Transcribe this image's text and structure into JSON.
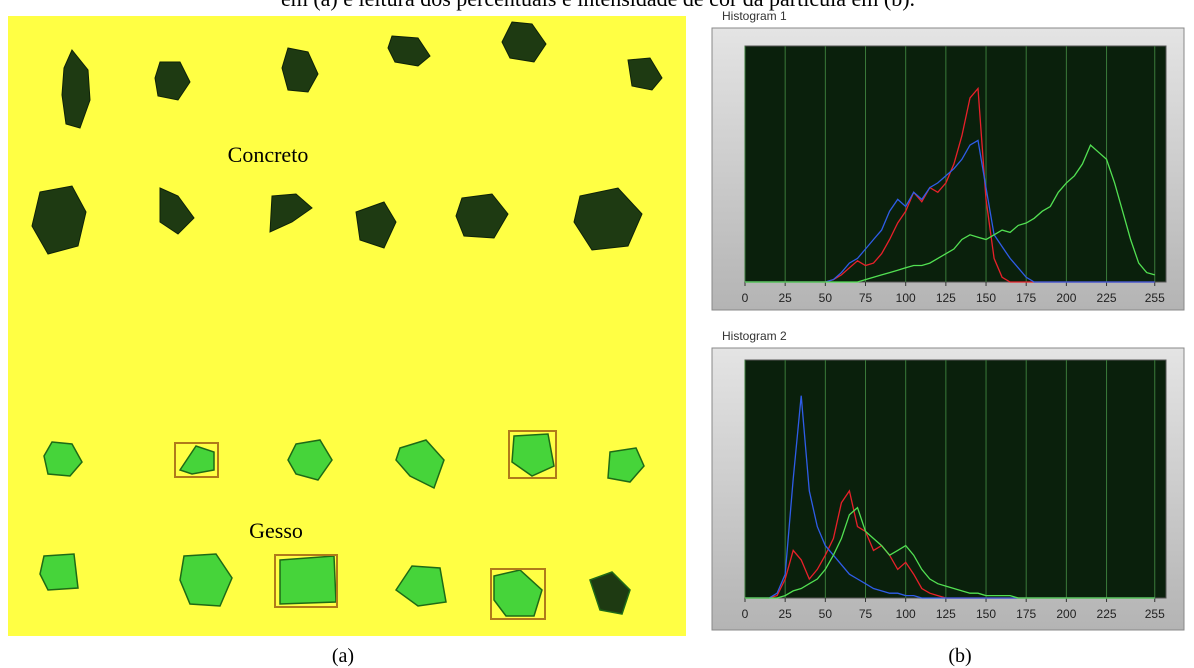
{
  "caption_top": "em (a) e leitura dos percentuais e intensidade de cor da partícula em (b).",
  "panel_a": {
    "label_top": "Concreto",
    "label_bottom": "Gesso",
    "tag": "(a)"
  },
  "panel_b": {
    "tag": "(b)"
  },
  "chart_data": [
    {
      "type": "line",
      "title": "Histogram 1",
      "x": [
        0,
        5,
        10,
        15,
        20,
        25,
        30,
        35,
        40,
        45,
        50,
        55,
        60,
        65,
        70,
        75,
        80,
        85,
        90,
        95,
        100,
        105,
        110,
        115,
        120,
        125,
        130,
        135,
        140,
        145,
        150,
        155,
        160,
        165,
        170,
        175,
        180,
        185,
        190,
        195,
        200,
        205,
        210,
        215,
        220,
        225,
        230,
        235,
        240,
        245,
        250,
        255
      ],
      "series": [
        {
          "color": "#e8202a",
          "values": [
            0,
            0,
            0,
            0,
            0,
            0,
            0,
            0,
            0,
            0,
            0,
            1,
            3,
            6,
            9,
            7,
            8,
            12,
            18,
            25,
            30,
            38,
            34,
            40,
            38,
            42,
            50,
            62,
            78,
            82,
            35,
            10,
            2,
            0,
            0,
            0,
            0,
            0,
            0,
            0,
            0,
            0,
            0,
            0,
            0,
            0,
            0,
            0,
            0,
            0,
            0,
            0
          ]
        },
        {
          "color": "#2f5de8",
          "values": [
            0,
            0,
            0,
            0,
            0,
            0,
            0,
            0,
            0,
            0,
            0,
            1,
            4,
            8,
            10,
            14,
            18,
            22,
            30,
            35,
            32,
            38,
            35,
            40,
            42,
            45,
            48,
            52,
            58,
            60,
            40,
            20,
            15,
            10,
            6,
            2,
            0,
            0,
            0,
            0,
            0,
            0,
            0,
            0,
            0,
            0,
            0,
            0,
            0,
            0,
            0,
            0
          ]
        },
        {
          "color": "#52e052",
          "values": [
            0,
            0,
            0,
            0,
            0,
            0,
            0,
            0,
            0,
            0,
            0,
            0,
            0,
            0,
            0,
            1,
            2,
            3,
            4,
            5,
            6,
            7,
            7,
            8,
            10,
            12,
            14,
            18,
            20,
            19,
            18,
            20,
            22,
            21,
            24,
            25,
            27,
            30,
            32,
            38,
            42,
            45,
            50,
            58,
            55,
            52,
            42,
            30,
            18,
            8,
            4,
            3
          ]
        }
      ],
      "xlim": [
        0,
        262
      ],
      "ylim": [
        0,
        100
      ],
      "xticks": [
        0,
        25,
        50,
        75,
        100,
        125,
        150,
        175,
        200,
        225,
        255
      ],
      "grid": true
    },
    {
      "type": "line",
      "title": "Histogram 2",
      "x": [
        0,
        5,
        10,
        15,
        20,
        25,
        30,
        35,
        40,
        45,
        50,
        55,
        60,
        65,
        70,
        75,
        80,
        85,
        90,
        95,
        100,
        105,
        110,
        115,
        120,
        125,
        130,
        135,
        140,
        145,
        150,
        155,
        160,
        165,
        170,
        175,
        180,
        185,
        190,
        195,
        200,
        205,
        210,
        215,
        220,
        225,
        230,
        235,
        240,
        245,
        250,
        255
      ],
      "series": [
        {
          "color": "#e8202a",
          "values": [
            0,
            0,
            0,
            0,
            1,
            8,
            20,
            16,
            8,
            12,
            18,
            25,
            40,
            45,
            30,
            28,
            20,
            22,
            18,
            12,
            15,
            10,
            4,
            2,
            1,
            0,
            0,
            0,
            0,
            0,
            0,
            0,
            0,
            0,
            0,
            0,
            0,
            0,
            0,
            0,
            0,
            0,
            0,
            0,
            0,
            0,
            0,
            0,
            0,
            0,
            0,
            0
          ]
        },
        {
          "color": "#2f5de8",
          "values": [
            0,
            0,
            0,
            0,
            2,
            10,
            50,
            85,
            45,
            30,
            22,
            18,
            14,
            10,
            8,
            6,
            4,
            3,
            2,
            2,
            1,
            1,
            0,
            0,
            0,
            0,
            0,
            0,
            0,
            0,
            0,
            0,
            0,
            0,
            0,
            0,
            0,
            0,
            0,
            0,
            0,
            0,
            0,
            0,
            0,
            0,
            0,
            0,
            0,
            0,
            0,
            0
          ]
        },
        {
          "color": "#52e052",
          "values": [
            0,
            0,
            0,
            0,
            0,
            1,
            3,
            4,
            6,
            8,
            12,
            18,
            25,
            35,
            38,
            28,
            25,
            22,
            18,
            20,
            22,
            18,
            12,
            8,
            6,
            5,
            4,
            3,
            2,
            2,
            1,
            1,
            1,
            1,
            0,
            0,
            0,
            0,
            0,
            0,
            0,
            0,
            0,
            0,
            0,
            0,
            0,
            0,
            0,
            0,
            0,
            0
          ]
        }
      ],
      "xlim": [
        0,
        262
      ],
      "ylim": [
        0,
        100
      ],
      "xticks": [
        0,
        25,
        50,
        75,
        100,
        125,
        150,
        175,
        200,
        225,
        255
      ],
      "grid": true
    }
  ]
}
